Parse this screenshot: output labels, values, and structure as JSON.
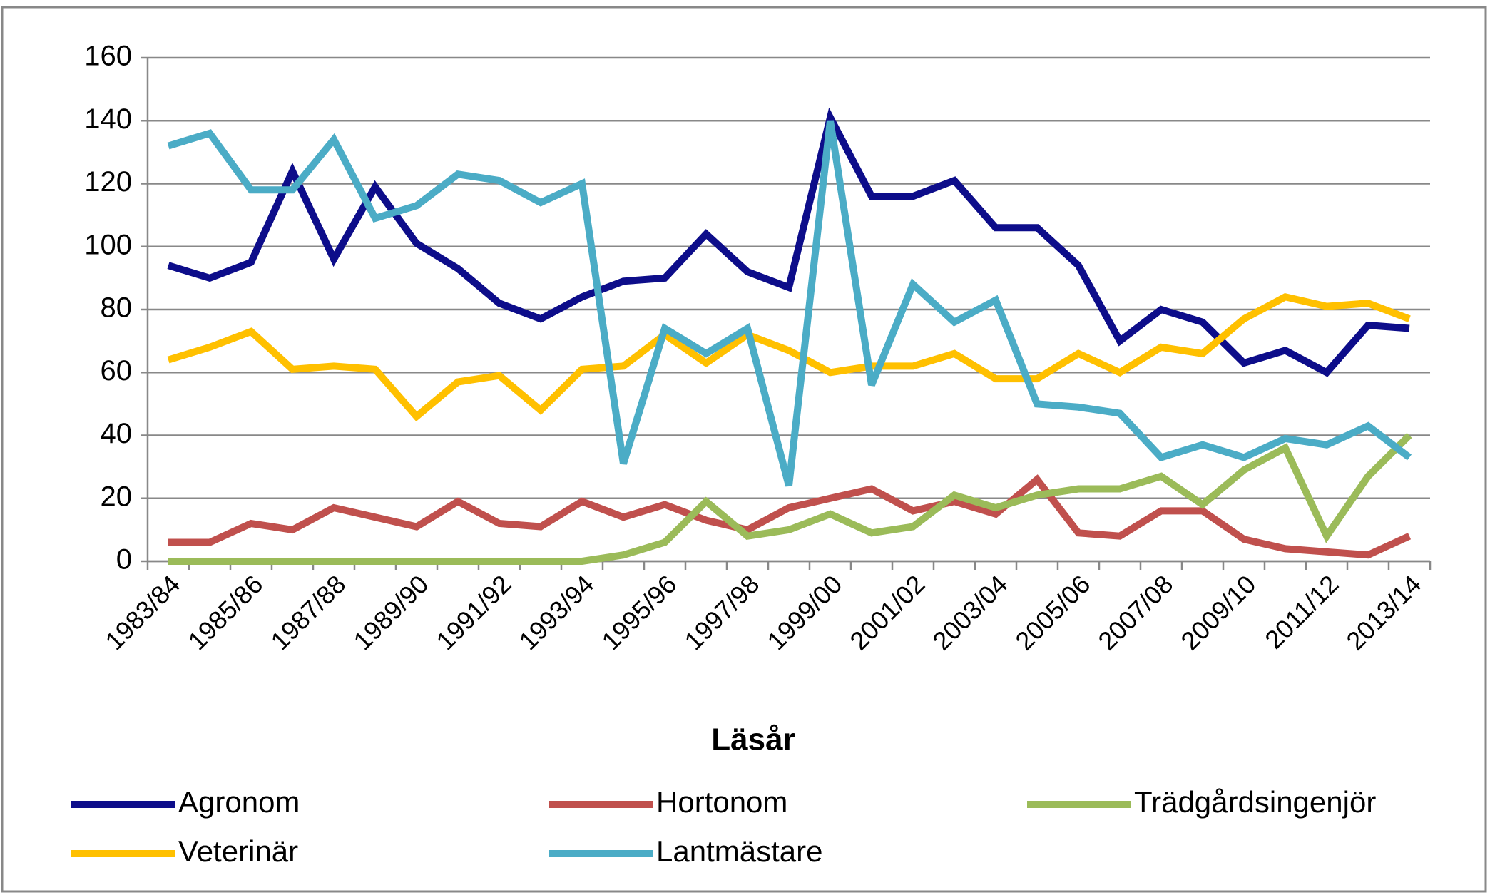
{
  "chart_data": {
    "type": "line",
    "x_label": "Läsår",
    "categories": [
      "1983/84",
      null,
      "1985/86",
      null,
      "1987/88",
      null,
      "1989/90",
      null,
      "1991/92",
      null,
      "1993/94",
      null,
      "1995/96",
      null,
      "1997/98",
      null,
      "1999/00",
      null,
      "2001/02",
      null,
      "2003/04",
      null,
      "2005/06",
      null,
      "2007/08",
      null,
      "2009/10",
      null,
      "2011/12",
      null,
      "2013/14"
    ],
    "series": [
      {
        "name": "Agronom",
        "color": "#0d0d8a",
        "values": [
          94,
          90,
          95,
          124,
          96,
          119,
          101,
          93,
          82,
          77,
          84,
          89,
          90,
          104,
          92,
          87,
          141,
          116,
          116,
          121,
          106,
          106,
          94,
          70,
          80,
          76,
          63,
          67,
          60,
          75,
          74
        ]
      },
      {
        "name": "Hortonom",
        "color": "#c0504d",
        "values": [
          6,
          6,
          12,
          10,
          17,
          14,
          11,
          19,
          12,
          11,
          19,
          14,
          18,
          13,
          10,
          17,
          20,
          23,
          16,
          19,
          15,
          26,
          9,
          8,
          16,
          16,
          7,
          4,
          3,
          2,
          8
        ]
      },
      {
        "name": "Trädgårdsingenjör",
        "color": "#9bbb59",
        "values": [
          0,
          0,
          0,
          0,
          0,
          0,
          0,
          0,
          0,
          0,
          0,
          2,
          6,
          19,
          8,
          10,
          15,
          9,
          11,
          21,
          17,
          21,
          23,
          23,
          27,
          18,
          29,
          36,
          8,
          27,
          40
        ]
      },
      {
        "name": "Veterinär",
        "color": "#ffc000",
        "values": [
          64,
          68,
          73,
          61,
          62,
          61,
          46,
          57,
          59,
          48,
          61,
          62,
          72,
          63,
          72,
          67,
          60,
          62,
          62,
          66,
          58,
          58,
          66,
          60,
          68,
          66,
          77,
          84,
          81,
          82,
          77
        ]
      },
      {
        "name": "Lantmästare",
        "color": "#4bacc6",
        "values": [
          132,
          136,
          118,
          118,
          134,
          109,
          113,
          123,
          121,
          114,
          120,
          31,
          74,
          66,
          74,
          24,
          140,
          56,
          88,
          76,
          83,
          50,
          49,
          47,
          33,
          37,
          33,
          39,
          37,
          43,
          33
        ]
      }
    ],
    "ylim": [
      0,
      160
    ],
    "yticks": [
      0,
      20,
      40,
      60,
      80,
      100,
      120,
      140,
      160
    ],
    "grid": true,
    "legend": "bottom"
  }
}
